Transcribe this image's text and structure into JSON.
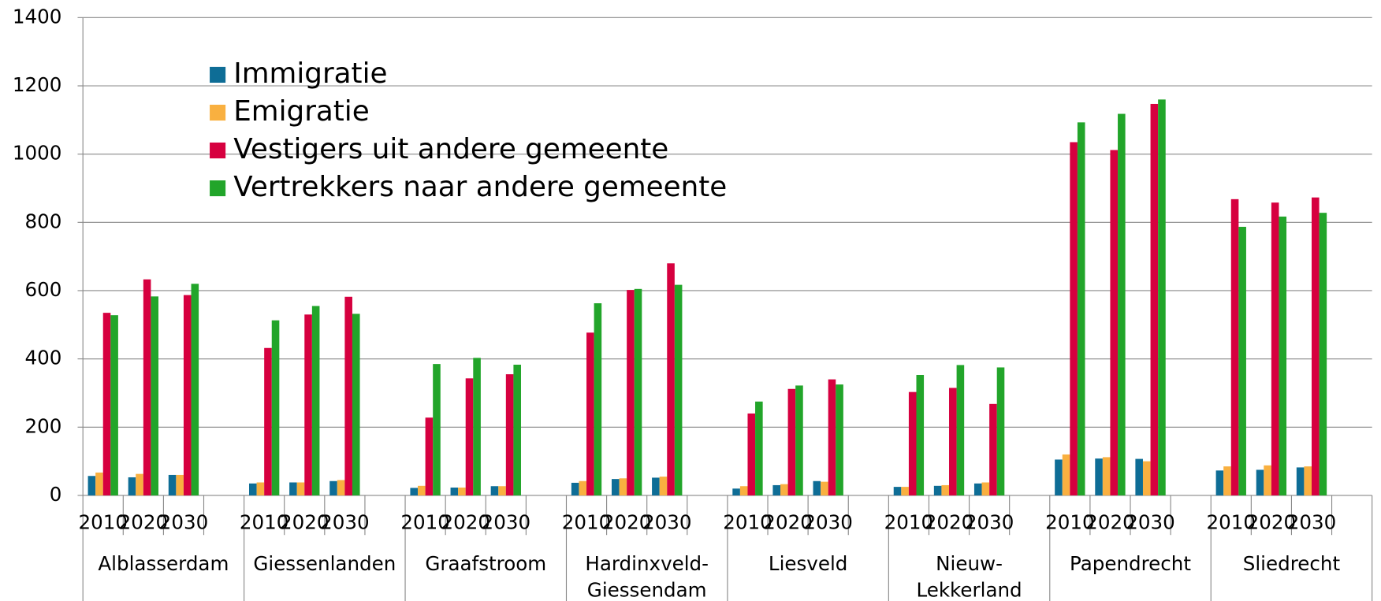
{
  "chart_data": {
    "type": "bar",
    "groups": [
      "Alblasserdam",
      "Giessenlanden",
      "Graafstroom",
      "Hardinxveld-Giessendam",
      "Liesveld",
      "Nieuw-Lekkerland",
      "Papendrecht",
      "Sliedrecht"
    ],
    "categories": [
      "2010",
      "2020",
      "2030",
      null,
      "2010",
      "2020",
      "2030",
      null,
      "2010",
      "2020",
      "2030",
      null,
      "2010",
      "2020",
      "2030",
      null,
      "2010",
      "2020",
      "2030",
      null,
      "2010",
      "2020",
      "2030",
      null,
      "2010",
      "2020",
      "2030",
      null,
      "2010",
      "2020",
      "2030",
      null
    ],
    "series": [
      {
        "name": "Immigratie",
        "color": "#0e6d96",
        "values": [
          57,
          53,
          60,
          null,
          35,
          38,
          42,
          null,
          22,
          23,
          27,
          null,
          37,
          48,
          52,
          null,
          20,
          30,
          42,
          null,
          25,
          28,
          35,
          null,
          105,
          108,
          107,
          null,
          73,
          75,
          82,
          null
        ]
      },
      {
        "name": "Emigratie",
        "color": "#f9b040",
        "values": [
          67,
          63,
          60,
          null,
          38,
          38,
          45,
          null,
          28,
          23,
          27,
          null,
          42,
          50,
          55,
          null,
          27,
          33,
          40,
          null,
          25,
          30,
          38,
          null,
          120,
          112,
          100,
          null,
          85,
          88,
          85,
          null
        ]
      },
      {
        "name": "Vestigers uit andere gemeente",
        "color": "#d6003f",
        "values": [
          535,
          633,
          587,
          null,
          432,
          530,
          582,
          null,
          228,
          343,
          355,
          null,
          477,
          602,
          680,
          null,
          240,
          312,
          340,
          null,
          303,
          315,
          268,
          null,
          1035,
          1012,
          1147,
          null,
          868,
          858,
          873,
          null
        ]
      },
      {
        "name": "Vertrekkers naar andere gemeente",
        "color": "#22a52a",
        "values": [
          528,
          583,
          620,
          null,
          513,
          555,
          532,
          null,
          385,
          403,
          383,
          null,
          563,
          605,
          617,
          null,
          275,
          322,
          325,
          null,
          353,
          382,
          375,
          null,
          1093,
          1118,
          1160,
          null,
          787,
          817,
          828,
          null
        ]
      }
    ],
    "ylim": [
      0,
      1400
    ],
    "yticks": [
      0,
      200,
      400,
      600,
      800,
      1000,
      1200,
      1400
    ],
    "grid": true,
    "legend": "upper left"
  }
}
